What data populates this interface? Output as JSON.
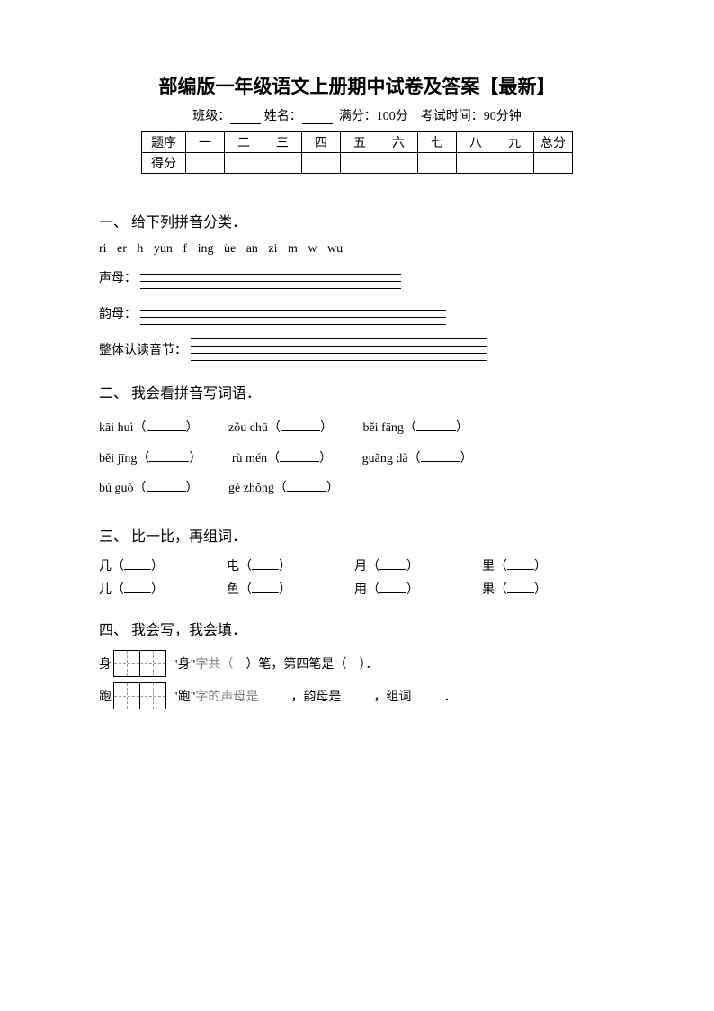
{
  "title": "部编版一年级语文上册期中试卷及答案【最新】",
  "subline": {
    "class_label": "班级：",
    "name_label": "姓名：",
    "full_label": "满分：100分",
    "time_label": "考试时间：90分钟"
  },
  "score_table": {
    "row1_label": "题序",
    "cols": [
      "一",
      "二",
      "三",
      "四",
      "五",
      "六",
      "七",
      "八",
      "九",
      "总分"
    ],
    "row2_label": "得分"
  },
  "q1": {
    "head": "一、 给下列拼音分类．",
    "pinyin": "ri  er  h  yun  f  ing  üe  an  zi  m  w  wu",
    "label_sm": "声母：",
    "label_ym": "韵母：",
    "label_zt": "整体认读音节：",
    "sm_width": 290,
    "ym_width": 340,
    "zt_width": 330
  },
  "q2": {
    "head": "二、 我会看拼音写词语．",
    "items": [
      "kāi huì（",
      "zǒu chū（",
      "běi fāng（",
      "běi jīng（",
      "rù mén（",
      "guǎng dà（",
      "bú guò（",
      "gè zhǒng（"
    ],
    "close": "）"
  },
  "q3": {
    "head": "三、 比一比，再组词．",
    "rows": [
      [
        "几（",
        "电（",
        "月（",
        "里（"
      ],
      [
        "儿（",
        "鱼（",
        "用（",
        "果（"
      ]
    ],
    "close": "）"
  },
  "q4": {
    "head": "四、 我会写，我会填．",
    "line1_a": "\"身\"",
    "line1_b": "字共（",
    "line1_c": "）笔，第四笔是（",
    "line1_d": "）．",
    "line2_a": "\"跑\"",
    "line2_b": "字的声母是",
    "line2_c": "，韵母是",
    "line2_d": "，组词",
    "line2_e": "．",
    "char1": "身",
    "char2": "跑"
  }
}
